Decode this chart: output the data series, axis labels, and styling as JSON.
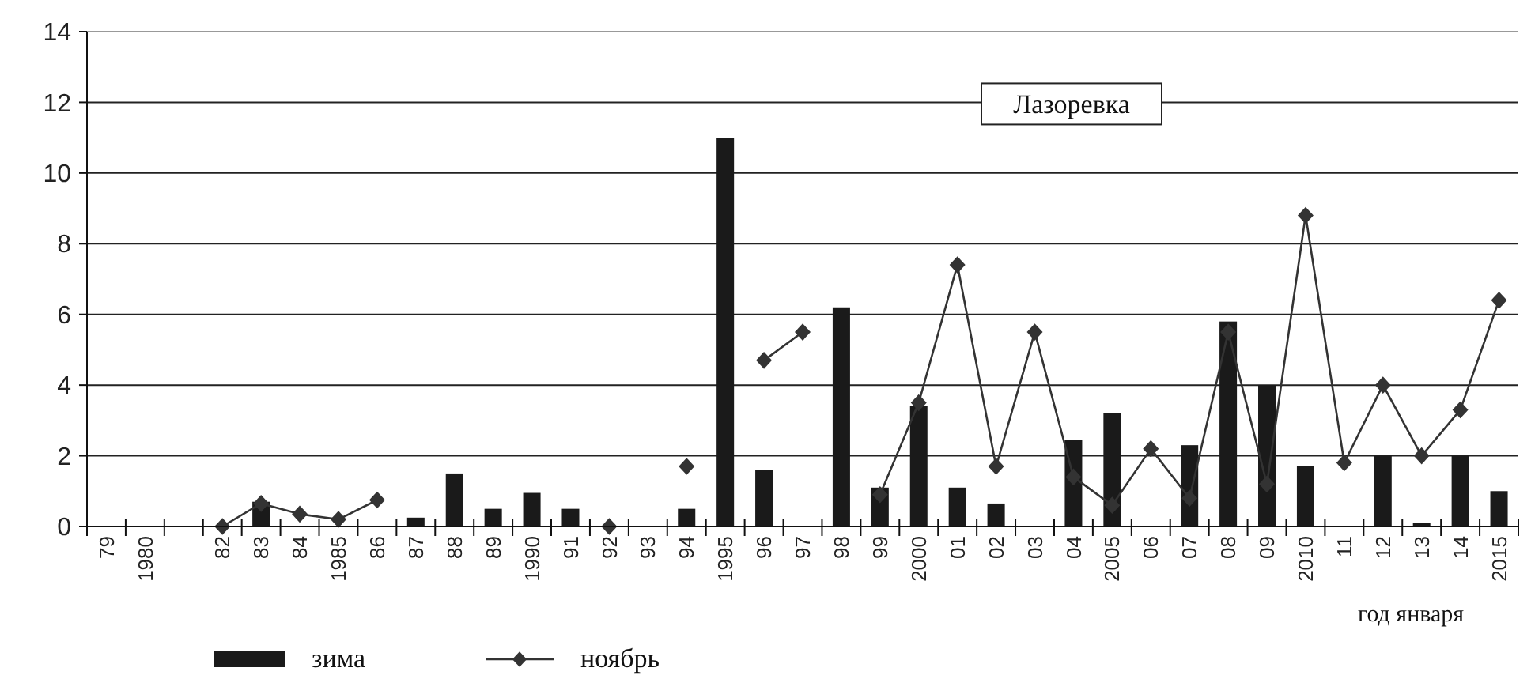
{
  "chart_data": {
    "type": "bar",
    "annotations": [
      "Лазоревка"
    ],
    "xlabel": "год января",
    "categories": [
      "79",
      "1980",
      null,
      "82",
      "83",
      "84",
      "1985",
      "86",
      "87",
      "88",
      "89",
      "1990",
      "91",
      "92",
      "93",
      "94",
      "1995",
      "96",
      "97",
      "98",
      "99",
      "2000",
      "01",
      "02",
      "03",
      "04",
      "2005",
      "06",
      "07",
      "08",
      "09",
      "2010",
      "11",
      "12",
      "13",
      "14",
      "2015"
    ],
    "series": [
      {
        "name": "зима",
        "color": "#1a1a1a",
        "values": [
          null,
          null,
          null,
          null,
          0.7,
          null,
          null,
          null,
          0.25,
          1.5,
          0.5,
          0.95,
          0.5,
          null,
          null,
          0.5,
          11,
          1.6,
          null,
          6.2,
          1.1,
          3.4,
          1.1,
          0.65,
          null,
          2.45,
          3.2,
          null,
          2.3,
          5.8,
          4.0,
          1.7,
          null,
          2.0,
          0.1,
          2.0,
          1.0
        ]
      },
      {
        "name": "ноябрь",
        "type": "line",
        "color": "#333333",
        "marker": "diamond",
        "values": [
          null,
          null,
          null,
          0,
          0.65,
          0.35,
          0.2,
          0.75,
          null,
          null,
          null,
          null,
          null,
          0,
          null,
          1.7,
          null,
          4.7,
          5.5,
          null,
          0.9,
          3.5,
          7.4,
          1.7,
          5.5,
          1.4,
          0.6,
          2.2,
          0.8,
          5.5,
          1.2,
          8.8,
          1.8,
          4.0,
          2.0,
          3.3,
          6.4
        ]
      }
    ],
    "ylim": [
      0,
      14
    ],
    "yticks": [
      0,
      2,
      4,
      6,
      8,
      10,
      12,
      14
    ],
    "grid": "y",
    "legend": "bottom"
  }
}
